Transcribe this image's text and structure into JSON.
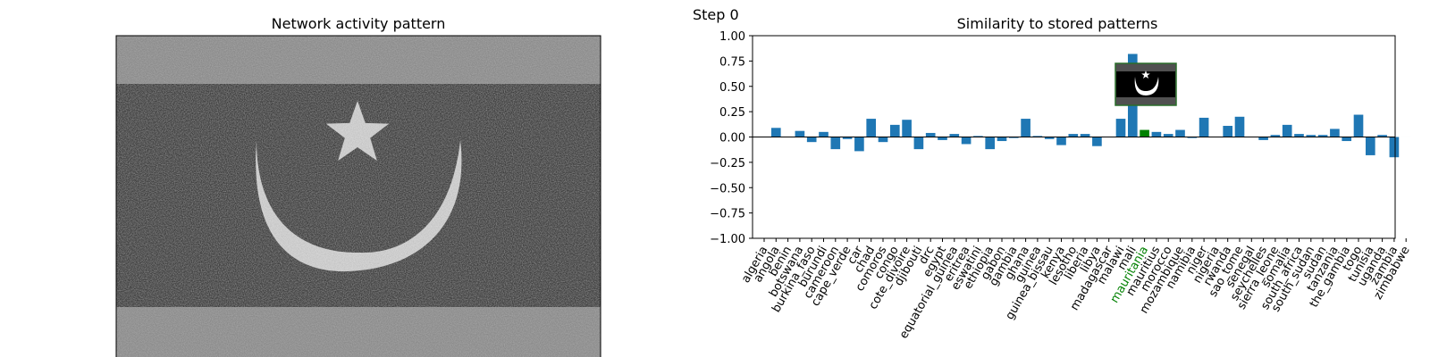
{
  "step_label": "Step 0",
  "chart_data": [
    {
      "type": "heatmap",
      "title": "Network activity pattern",
      "colormap": "gray",
      "content": "noisy grayscale rendering of the mauritania flag (crescent and star)"
    },
    {
      "type": "bar",
      "title": "Similarity to stored patterns",
      "xlabel": "",
      "ylabel": "",
      "ylim": [
        -1.0,
        1.0
      ],
      "yticks": [
        -1.0,
        -0.75,
        -0.5,
        -0.25,
        0.0,
        0.25,
        0.5,
        0.75,
        1.0
      ],
      "ytick_labels": [
        "−1.00",
        "−0.75",
        "−0.50",
        "−0.25",
        "0.00",
        "0.25",
        "0.50",
        "0.75",
        "1.00"
      ],
      "bar_color": "#1f77b4",
      "highlight_color": "#008000",
      "highlight": "mauritania",
      "categories": [
        "algeria",
        "angola",
        "benin",
        "botswana",
        "burkina_faso",
        "burundi",
        "cameroon",
        "cape_verde",
        "car",
        "chad",
        "comoros",
        "congo",
        "cote_divoire",
        "djibouti",
        "drc",
        "egypt",
        "equatorial_guinea",
        "eritrea",
        "eswatini",
        "ethiopia",
        "gabon",
        "gambia",
        "ghana",
        "guinea",
        "guinea_bissau",
        "kenya",
        "lesotho",
        "liberia",
        "libya",
        "madagascar",
        "malawi",
        "mali",
        "mauritania",
        "mauritius",
        "morocco",
        "mozambique",
        "namibia",
        "niger",
        "nigeria",
        "rwanda",
        "sao_tome",
        "senegal",
        "seychelles",
        "sierra_leone",
        "somalia",
        "south_africa",
        "south_sudan",
        "sudan",
        "tanzania",
        "the_gambia",
        "togo",
        "tunisia",
        "uganda",
        "zambia",
        "zimbabwe"
      ],
      "values": [
        0.0,
        0.09,
        0.0,
        0.06,
        -0.05,
        0.05,
        -0.12,
        -0.02,
        -0.14,
        0.18,
        -0.05,
        0.12,
        0.17,
        -0.12,
        0.04,
        -0.03,
        0.03,
        -0.07,
        0.01,
        -0.12,
        -0.04,
        -0.01,
        0.18,
        0.01,
        -0.02,
        -0.08,
        0.03,
        0.03,
        -0.09,
        0.0,
        0.18,
        0.82,
        0.07,
        0.05,
        0.03,
        0.07,
        -0.01,
        0.19,
        0.0,
        0.11,
        0.2,
        0.0,
        -0.03,
        0.02,
        0.12,
        0.03,
        0.02,
        0.02,
        0.08,
        -0.04,
        0.22,
        -0.18,
        0.02,
        -0.2,
        0.0
      ]
    }
  ]
}
